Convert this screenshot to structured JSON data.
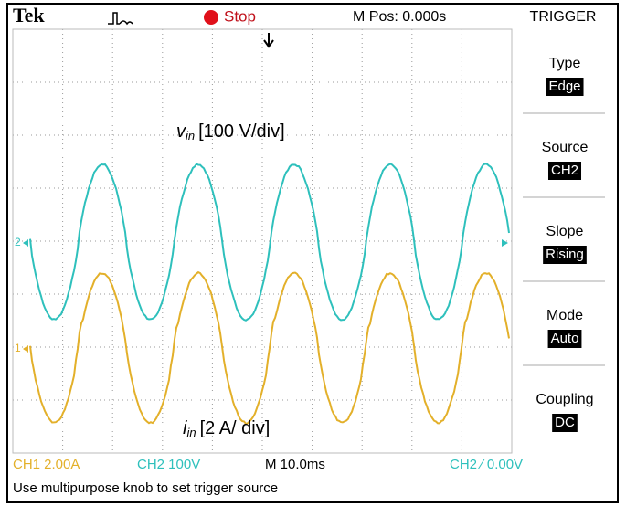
{
  "header": {
    "brand": "Tek",
    "status": "Stop",
    "position": "M Pos: 0.000s",
    "menu_title": "TRIGGER"
  },
  "menu": [
    {
      "label": "Type",
      "value": "Edge"
    },
    {
      "label": "Source",
      "value": "CH2"
    },
    {
      "label": "Slope",
      "value": "Rising"
    },
    {
      "label": "Mode",
      "value": "Auto"
    },
    {
      "label": "Coupling",
      "value": "DC"
    }
  ],
  "channels": {
    "ch2_marker": "2",
    "ch1_marker": "1"
  },
  "annotations": {
    "voltage": {
      "symbol": "v",
      "subscript": "in",
      "text": "[100 V/div]"
    },
    "current": {
      "symbol": "i",
      "subscript": "in",
      "text": "[2 A/ div]"
    }
  },
  "footer": {
    "ch1": "CH1  2.00A",
    "ch2": "CH2  100V",
    "timebase": "M 10.0ms",
    "trigger": "CH2 ∕ 0.00V",
    "message": "Use multipurpose knob to set trigger source"
  }
}
